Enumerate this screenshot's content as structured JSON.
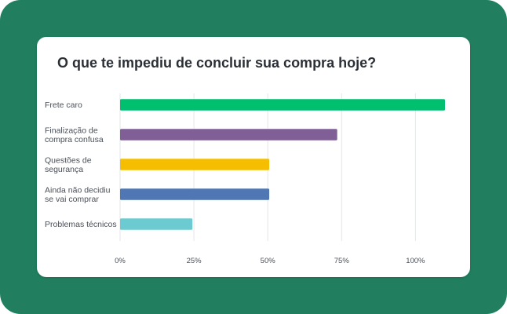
{
  "chart_data": {
    "type": "bar",
    "orientation": "horizontal",
    "title": "O que te impediu de concluir sua compra hoje?",
    "categories": [
      [
        "Frete caro"
      ],
      [
        "Finalização de",
        "compra confusa"
      ],
      [
        "Questões de",
        "segurança"
      ],
      [
        "Ainda não decidiu",
        "se vai comprar"
      ],
      [
        "Problemas técnicos"
      ]
    ],
    "values": [
      110,
      73.5,
      50.5,
      50.5,
      24.5
    ],
    "colors": [
      "#00bf6f",
      "#7f5f96",
      "#f5be00",
      "#4f77b4",
      "#6ccbd0"
    ],
    "xlim": [
      0,
      110
    ],
    "ticks": [
      0,
      25,
      50,
      75,
      100
    ],
    "tick_labels": [
      "0%",
      "25%",
      "50%",
      "75%",
      "100%"
    ],
    "grid": true,
    "xlabel": "",
    "ylabel": ""
  }
}
